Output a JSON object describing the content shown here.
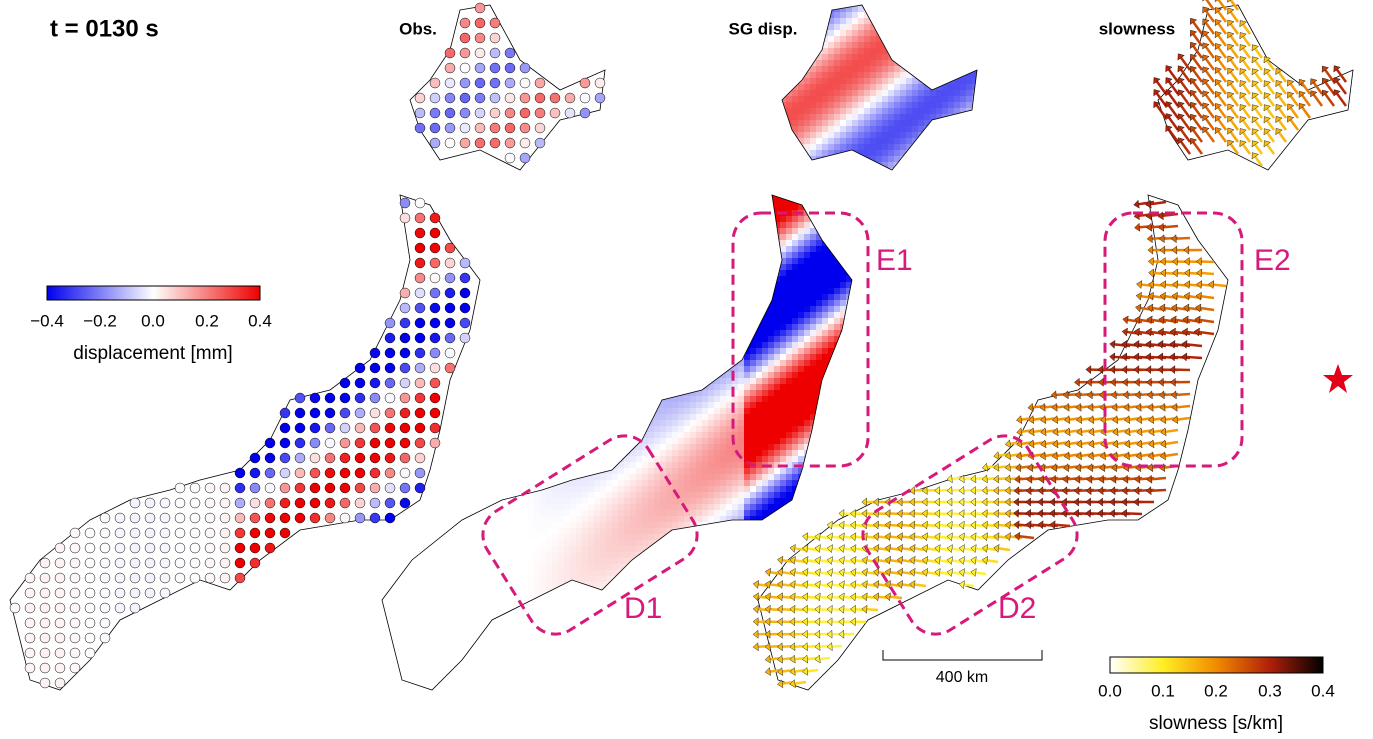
{
  "time_label": "t = 0130 s",
  "panels": [
    {
      "title": "Obs."
    },
    {
      "title": "SG disp."
    },
    {
      "title": "slowness"
    }
  ],
  "displacement_colorbar": {
    "ticks": [
      "−0.4",
      "−0.2",
      "0.0",
      "0.2",
      "0.4"
    ],
    "label": "displacement [mm]"
  },
  "slowness_colorbar": {
    "ticks": [
      "0.0",
      "0.1",
      "0.2",
      "0.3",
      "0.4"
    ],
    "label": "slowness [s/km]"
  },
  "regions": [
    {
      "label": "E1"
    },
    {
      "label": "D1"
    },
    {
      "label": "E2"
    },
    {
      "label": "D2"
    }
  ],
  "scale_bar": {
    "label": "400 km"
  }
}
